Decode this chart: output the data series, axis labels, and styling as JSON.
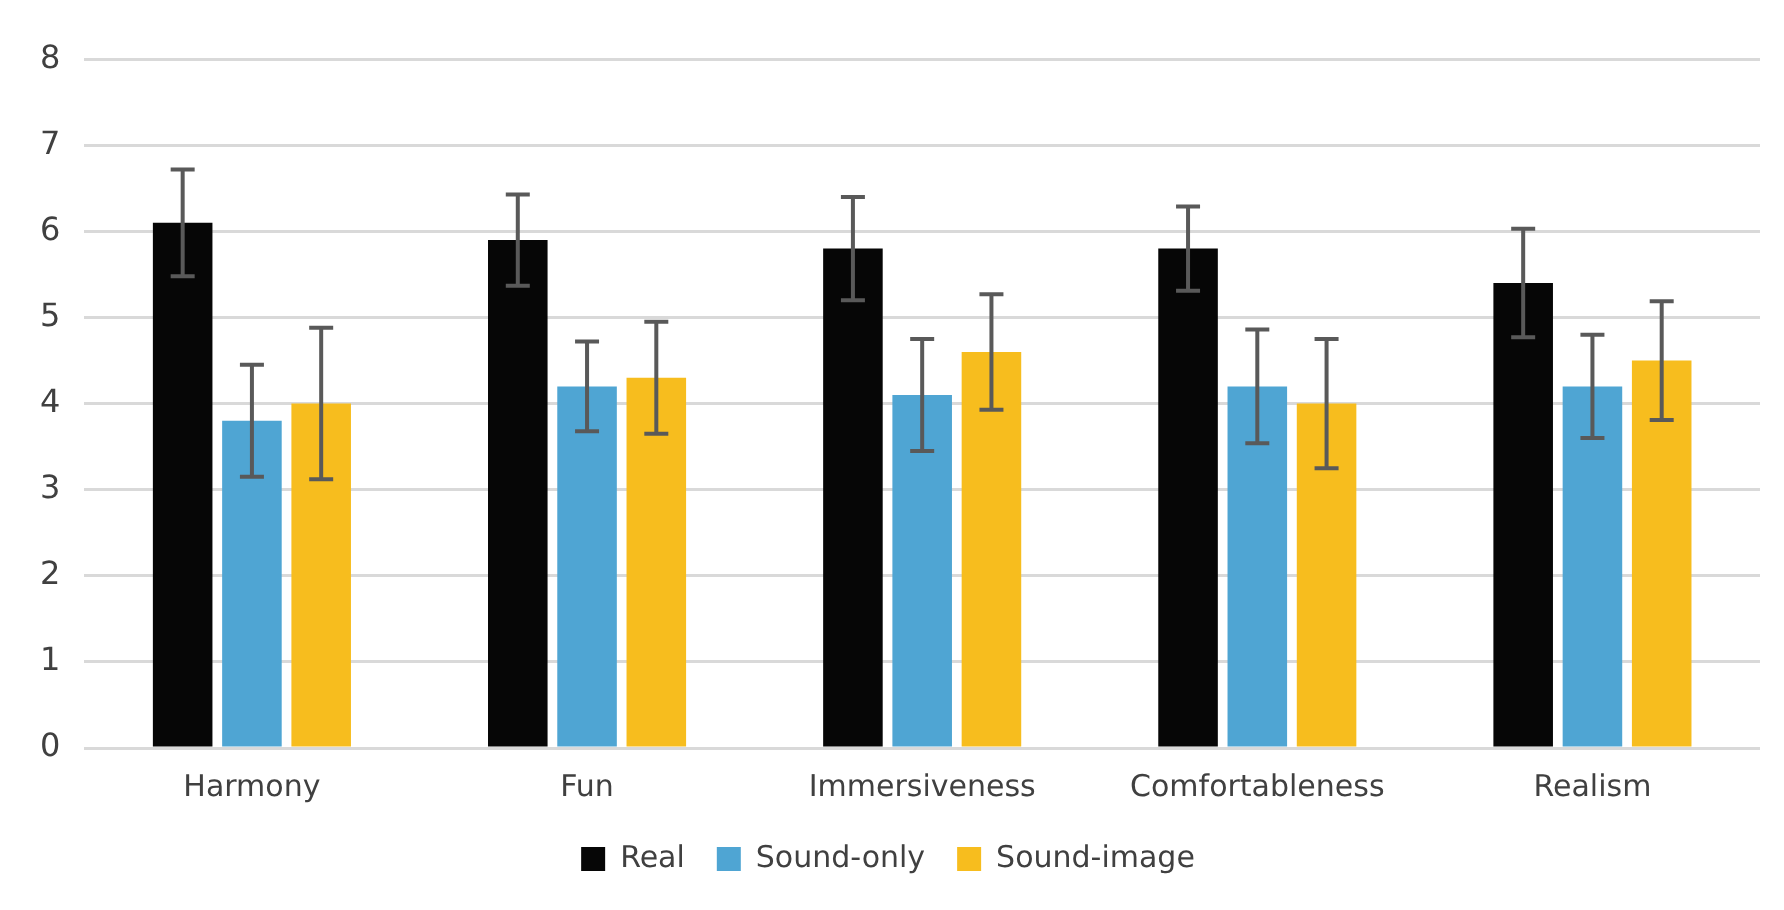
{
  "chart_data": {
    "type": "bar",
    "categories": [
      "Harmony",
      "Fun",
      "Immersiveness",
      "Comfortableness",
      "Realism"
    ],
    "series": [
      {
        "name": "Real",
        "color": "#060606",
        "values": [
          6.1,
          5.9,
          5.8,
          5.8,
          5.4
        ],
        "errors": [
          0.62,
          0.53,
          0.6,
          0.49,
          0.63
        ]
      },
      {
        "name": "Sound-only",
        "color": "#4fa5d3",
        "values": [
          3.8,
          4.2,
          4.1,
          4.2,
          4.2
        ],
        "errors": [
          0.65,
          0.52,
          0.65,
          0.66,
          0.6
        ]
      },
      {
        "name": "Sound-image",
        "color": "#f7bd1e",
        "values": [
          4.0,
          4.3,
          4.6,
          4.0,
          4.5
        ],
        "errors": [
          0.88,
          0.65,
          0.67,
          0.75,
          0.69
        ]
      }
    ],
    "ylim": [
      0,
      8
    ],
    "yticks": [
      0,
      1,
      2,
      3,
      4,
      5,
      6,
      7,
      8
    ],
    "grid": "y",
    "legend": "bottom"
  }
}
